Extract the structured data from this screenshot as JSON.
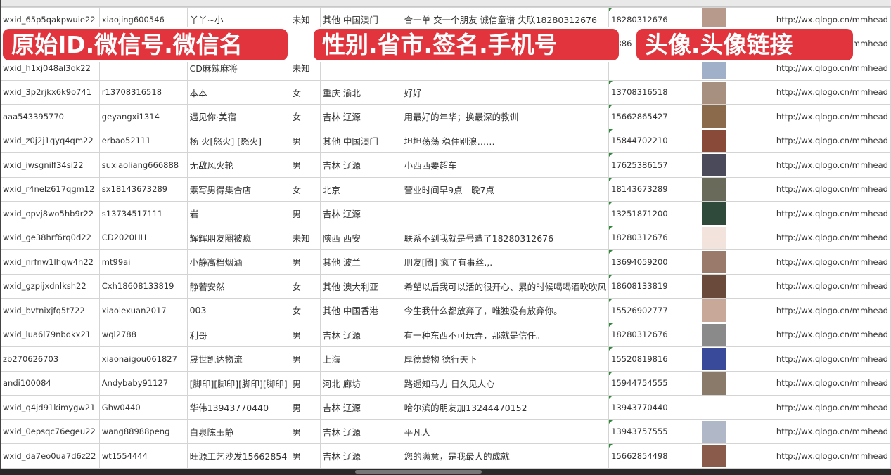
{
  "overlay_labels": [
    "原始ID.微信号.微信名",
    "性别.省市.签名.手机号",
    "头像.头像链接"
  ],
  "colors": {
    "label_bg": "#e1343d",
    "label_text": "#ffffff",
    "grid": "#d4d4d4"
  },
  "rows": [
    {
      "id": "wxid_65p5qakpwuie22",
      "wechat": "xiaojing600546",
      "name": "丫丫~小",
      "gender": "未知",
      "region": "其他 中国澳门",
      "signature": "合一单 交一个朋友 诚信童谱 失联18280312676",
      "phone": "18280312676",
      "url": "http://wx.qlogo.cn/mmhead",
      "avatar_color": "#b89a8c"
    },
    {
      "id": "",
      "wechat": "",
      "name": "",
      "gender": "",
      "region": "",
      "signature": "",
      "phone": "5386",
      "url": "http://wx.qlogo.cn/mmhead",
      "avatar_color": "#6b7fa8"
    },
    {
      "id": "wxid_h1xj048al3ok22",
      "wechat": "",
      "name": "CD麻辣麻将",
      "gender": "未知",
      "region": "",
      "signature": "",
      "phone": "",
      "url": "http://wx.qlogo.cn/mmhead",
      "avatar_color": "#9fb0c8"
    },
    {
      "id": "wxid_3p2rjkx6k9o741",
      "wechat": "r13708316518",
      "name": "本本",
      "gender": "女",
      "region": "重庆 渝北",
      "signature": "好好",
      "phone": "13708316518",
      "url": "http://wx.qlogo.cn/mmhead",
      "avatar_color": "#a89080"
    },
    {
      "id": "aaa543395770",
      "wechat": "geyangxi1314",
      "name": "遇见你·美宿",
      "gender": "女",
      "region": "吉林 辽源",
      "signature": "用最好的年华；换最深的教训",
      "phone": "15662865427",
      "url": "http://wx.qlogo.cn/mmhead",
      "avatar_color": "#8a6a4a"
    },
    {
      "id": "wxid_z0j2j1qyq4qm22",
      "wechat": "erbao52111",
      "name": "杨 火[怒火] [怒火]",
      "gender": "男",
      "region": "其他 中国澳门",
      "signature": "坦坦荡荡 稳住别浪……",
      "phone": "15844702210",
      "url": "http://wx.qlogo.cn/mmhead",
      "avatar_color": "#8a4a3a"
    },
    {
      "id": "wxid_iwsgnilf34si22",
      "wechat": "suxiaoliang666888",
      "name": "无敌风火轮",
      "gender": "男",
      "region": "吉林 辽源",
      "signature": "小西西要超车",
      "phone": "17625386157",
      "url": "http://wx.qlogo.cn/mmhead",
      "avatar_color": "#4a4a5a"
    },
    {
      "id": "wxid_r4nelz617qgm12",
      "wechat": "sx18143673289",
      "name": "素写男得集合店",
      "gender": "女",
      "region": "北京",
      "signature": "营业时间早9点－晚7点",
      "phone": "18143673289",
      "url": "http://wx.qlogo.cn/mmhead",
      "avatar_color": "#6a6a5a"
    },
    {
      "id": "wxid_opvj8wo5hb9r22",
      "wechat": "s13734517111",
      "name": "岩",
      "gender": "男",
      "region": "吉林 辽源",
      "signature": "",
      "phone": "13251871200",
      "url": "http://wx.qlogo.cn/mmhead",
      "avatar_color": "#2f4a3a"
    },
    {
      "id": "wxid_ge38hrf6rq0d22",
      "wechat": "CD2020HH",
      "name": "辉辉朋友圈被疯",
      "gender": "未知",
      "region": "陕西 西安",
      "signature": "联系不到我就是号遭了18280312676",
      "phone": "18280312676",
      "url": "http://wx.qlogo.cn/mmhead",
      "avatar_color": "#f2e4dc"
    },
    {
      "id": "wxid_nrfnw1lhqw4h22",
      "wechat": "mt99ai",
      "name": "小静高档烟酒",
      "gender": "男",
      "region": "其他 波兰",
      "signature": "朋友[圈] 疯了有事丝.,.",
      "phone": "13694059200",
      "url": "http://wx.qlogo.cn/mmhead",
      "avatar_color": "#9a7a6a"
    },
    {
      "id": "wxid_gzpijxdnlksh22",
      "wechat": "Cxh18608133819",
      "name": "静若安然",
      "gender": "女",
      "region": "其他 澳大利亚",
      "signature": "希望以后我可以活的很开心、累的时候喝喝酒吹吹风",
      "phone": "18608133819",
      "url": "http://wx.qlogo.cn/mmhead",
      "avatar_color": "#6a4a3a"
    },
    {
      "id": "wxid_bvtnixjfq5t722",
      "wechat": "xiaolexuan2017",
      "name": "003",
      "gender": "女",
      "region": "其他 中国香港",
      "signature": "今生我什么都放弃了，唯独没有放弃你。",
      "phone": "15526902777",
      "url": "http://wx.qlogo.cn/mmhead",
      "avatar_color": "#c8a898"
    },
    {
      "id": "wxid_lua6l79nbdkx21",
      "wechat": "wql2788",
      "name": "利哥",
      "gender": "男",
      "region": "吉林 辽源",
      "signature": "有一种东西不可玩弄，那就是信任。",
      "phone": "18280312676",
      "url": "http://wx.qlogo.cn/mmhead",
      "avatar_color": "#8a8a8a"
    },
    {
      "id": "zb270626703",
      "wechat": "xiaonaigou061827",
      "name": "晟世凯达物流",
      "gender": "男",
      "region": "上海",
      "signature": "厚德载物 德行天下",
      "phone": "15520819816",
      "url": "http://wx.qlogo.cn/mmhead",
      "avatar_color": "#3a4a9a"
    },
    {
      "id": "andi100084",
      "wechat": "Andybaby91127",
      "name": "[脚印][脚印][脚印][脚印]",
      "gender": "男",
      "region": "河北 廊坊",
      "signature": "路遥知马力 日久见人心",
      "phone": "15944754555",
      "url": "http://wx.qlogo.cn/mmhead",
      "avatar_color": "#8a7a6a"
    },
    {
      "id": "wxid_q4jd91kimygw21",
      "wechat": "Ghw0440",
      "name": "华伟13943770440",
      "gender": "男",
      "region": "吉林 辽源",
      "signature": "哈尔滨的朋友加13244470152",
      "phone": "13943770440",
      "url": "http://wx.qlogo.cn/mmhead",
      "avatar_color": "#ffffff"
    },
    {
      "id": "wxid_0epsqc76egeu22",
      "wechat": "wang88988peng",
      "name": "白泉陈玉静",
      "gender": "男",
      "region": "吉林 辽源",
      "signature": "平凡人",
      "phone": "13943757555",
      "url": "http://wx.qlogo.cn/mmhead",
      "avatar_color": "#b0b8c8"
    },
    {
      "id": "wxid_da7eo0ua7d6z22",
      "wechat": "wt1554444",
      "name": "旺源工艺沙发15662854",
      "gender": "男",
      "region": "吉林 辽源",
      "signature": "您的满意，是我最大的成就",
      "phone": "15662854498",
      "url": "http://wx.qlogo.cn/mmhead",
      "avatar_color": "#8a5a4a"
    }
  ]
}
